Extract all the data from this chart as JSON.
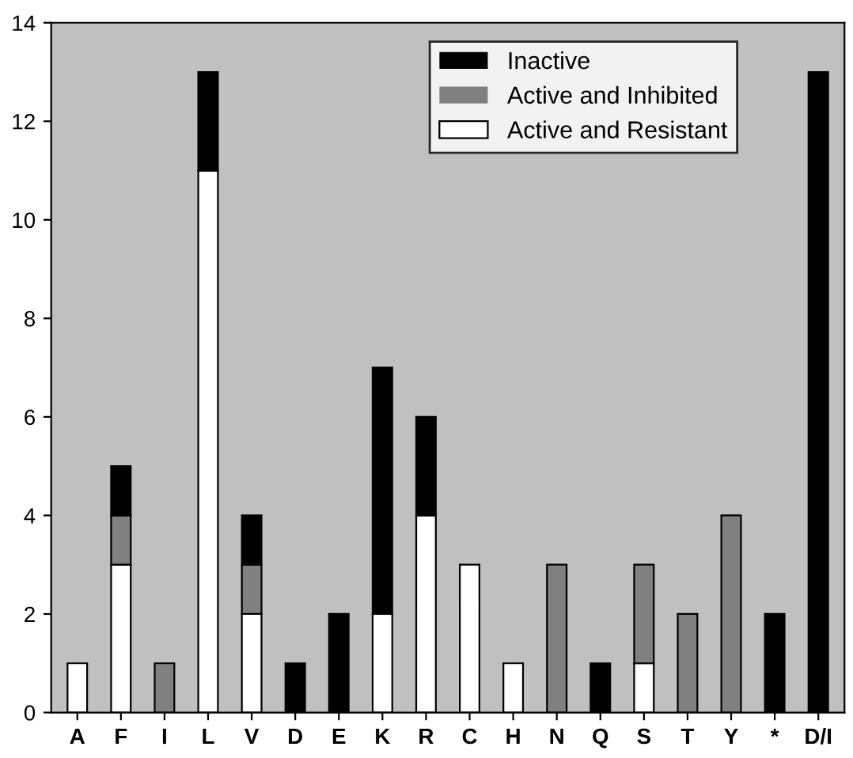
{
  "chart_data": {
    "type": "bar",
    "stacked": true,
    "categories": [
      "A",
      "F",
      "I",
      "L",
      "V",
      "D",
      "E",
      "K",
      "R",
      "C",
      "H",
      "N",
      "Q",
      "S",
      "T",
      "Y",
      "*",
      "D/I"
    ],
    "series": [
      {
        "name": "Active and Resistant",
        "color": "#ffffff",
        "values": [
          1,
          3,
          0,
          11,
          2,
          0,
          0,
          2,
          4,
          3,
          1,
          0,
          0,
          1,
          0,
          0,
          0,
          0
        ]
      },
      {
        "name": "Active and Inhibited",
        "color": "#808080",
        "values": [
          0,
          1,
          1,
          0,
          1,
          0,
          0,
          0,
          0,
          0,
          0,
          3,
          0,
          2,
          2,
          4,
          0,
          0
        ]
      },
      {
        "name": "Inactive",
        "color": "#000000",
        "values": [
          0,
          1,
          0,
          2,
          1,
          1,
          2,
          5,
          2,
          0,
          0,
          0,
          1,
          0,
          0,
          0,
          2,
          13
        ]
      }
    ],
    "ylim": [
      0,
      14
    ],
    "yticks": [
      0,
      2,
      4,
      6,
      8,
      10,
      12,
      14
    ],
    "grid": false,
    "legend": "top right"
  }
}
